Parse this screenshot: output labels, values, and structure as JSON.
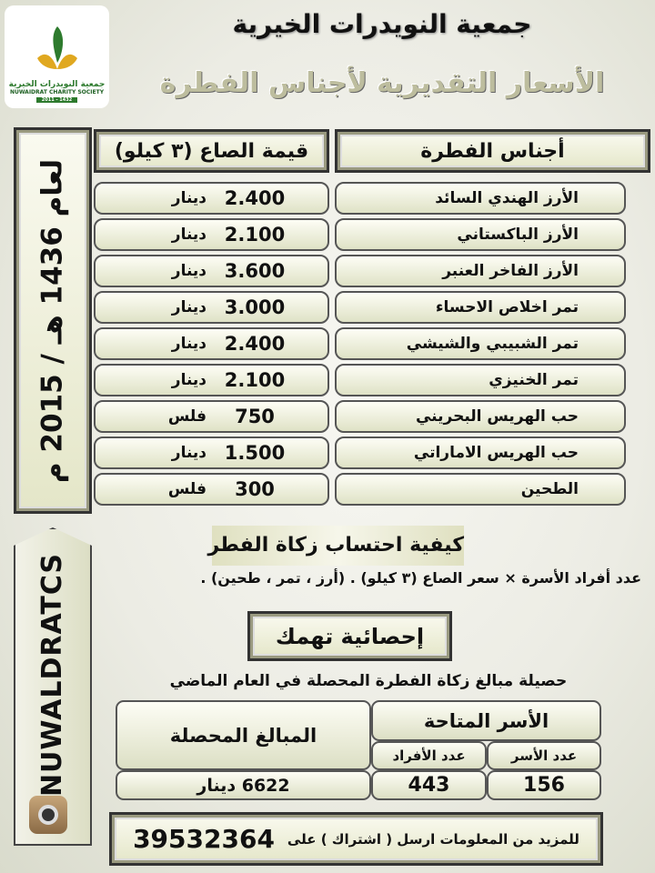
{
  "logo": {
    "arabic": "جمعية النويدرات الخيرية",
    "english": "NUWAIDRAT CHARITY SOCIETY",
    "years": "2011 - 1432"
  },
  "title": "جمعية النويدرات الخيرية",
  "subtitle": "الأسعار التقديرية لأجناس الفطرة",
  "side_year": "لعام 1436 هـ / 2015 م",
  "side_handle": "NUWALDRATCS",
  "table": {
    "headers": {
      "item": "أجناس الفطرة",
      "price": "قيمة الصاع (٣ كيلو)"
    },
    "rows": [
      {
        "item": "الأرز الهندي السائد",
        "value": "2.400",
        "unit": "دينار"
      },
      {
        "item": "الأرز الباكستاني",
        "value": "2.100",
        "unit": "دينار"
      },
      {
        "item": "الأرز الفاخر العنبر",
        "value": "3.600",
        "unit": "دينار"
      },
      {
        "item": "تمر اخلاص الاحساء",
        "value": "3.000",
        "unit": "دينار"
      },
      {
        "item": "تمر الشبيبي والشيشي",
        "value": "2.400",
        "unit": "دينار"
      },
      {
        "item": "تمر الخنيزي",
        "value": "2.100",
        "unit": "دينار"
      },
      {
        "item": "حب الهريس البحريني",
        "value": "750",
        "unit": "فلس"
      },
      {
        "item": "حب الهريس الاماراتي",
        "value": "1.500",
        "unit": "دينار"
      },
      {
        "item": "الطحين",
        "value": "300",
        "unit": "فلس"
      }
    ]
  },
  "how": {
    "heading": "كيفية احتساب زكاة الفطر",
    "formula": "عدد أفراد الأسرة × سعر الصاع (٣ كيلو) . (أرز ، تمر ، طحين) ."
  },
  "stats": {
    "heading": "إحصائية تهمك",
    "subtitle": "حصيلة مبالغ زكاة الفطرة المحصلة في العام الماضي",
    "families_header": "الأسر المتاحة",
    "families_count_label": "عدد الأسر",
    "members_label": "عدد الأفراد",
    "amount_header": "المبالغ المحصلة",
    "families_count": "156",
    "members": "443",
    "amount": "6622 دينار"
  },
  "footer": {
    "text": "للمزيد من المعلومات ارسل ( اشتراك ) على",
    "phone": "39532364"
  }
}
